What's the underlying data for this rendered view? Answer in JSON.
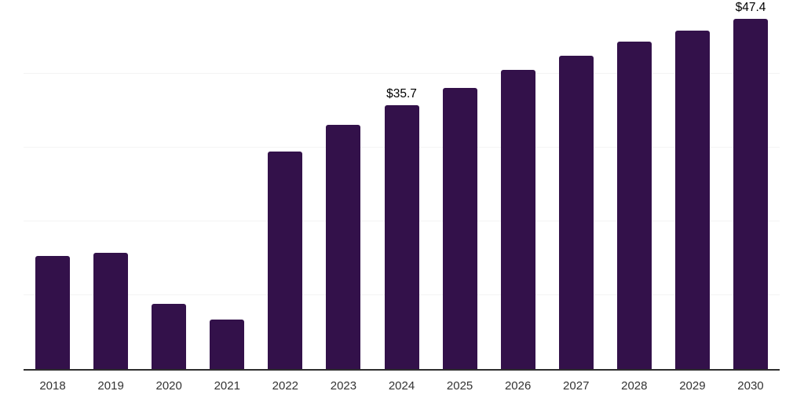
{
  "chart_data": {
    "type": "bar",
    "title": "",
    "xlabel": "",
    "ylabel": "",
    "categories": [
      "2018",
      "2019",
      "2020",
      "2021",
      "2022",
      "2023",
      "2024",
      "2025",
      "2026",
      "2027",
      "2028",
      "2029",
      "2030"
    ],
    "values": [
      15.3,
      15.7,
      8.8,
      6.7,
      29.5,
      33.1,
      35.7,
      38.1,
      40.5,
      42.5,
      44.4,
      45.9,
      47.4
    ],
    "data_labels": [
      {
        "category": "2024",
        "text": "$35.7"
      },
      {
        "category": "2030",
        "text": "$47.4"
      }
    ],
    "ylim": [
      0,
      50
    ],
    "gridline_step": 10,
    "grid": true,
    "legend": false,
    "colors": {
      "bar": "#33114a",
      "gridline": "#f4f4f4",
      "axis_line": "#2e2e2e",
      "tick_label": "#333333",
      "data_label": "#000000",
      "background": "#ffffff"
    }
  }
}
